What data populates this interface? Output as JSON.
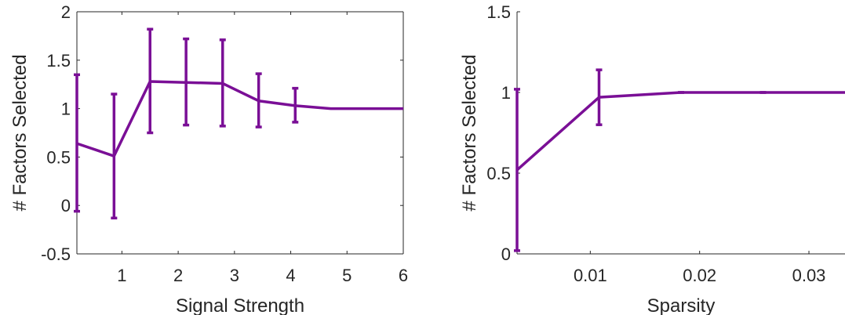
{
  "series_color": "#7a0f96",
  "axis_color": "#262626",
  "chart_data": [
    {
      "type": "line",
      "xlabel": "Signal Strength",
      "ylabel": "# Factors Selected",
      "xlim": [
        0.2,
        6
      ],
      "ylim": [
        -0.5,
        2
      ],
      "xticks": [
        1,
        2,
        3,
        4,
        5,
        6
      ],
      "xtick_labels": [
        "1",
        "2",
        "3",
        "4",
        "5",
        "6"
      ],
      "yticks": [
        -0.5,
        0,
        0.5,
        1,
        1.5,
        2
      ],
      "ytick_labels": [
        "-0.5",
        "0",
        "0.5",
        "1",
        "1.5",
        "2"
      ],
      "grid": false,
      "box": "full",
      "series": [
        {
          "x": [
            0.2,
            0.86,
            1.5,
            2.14,
            2.79,
            3.43,
            4.08,
            4.71,
            5.36,
            6.0
          ],
          "y": [
            0.64,
            0.51,
            1.28,
            1.27,
            1.26,
            1.08,
            1.03,
            1.0,
            1.0,
            1.0
          ],
          "err_low": [
            -0.06,
            -0.13,
            0.75,
            0.83,
            0.82,
            0.81,
            0.86,
            1.0,
            1.0,
            1.0
          ],
          "err_high": [
            1.35,
            1.15,
            1.82,
            1.72,
            1.71,
            1.36,
            1.21,
            1.0,
            1.0,
            1.0
          ],
          "errorbars": [
            true,
            true,
            true,
            true,
            true,
            true,
            true,
            false,
            false,
            false
          ]
        }
      ]
    },
    {
      "type": "line",
      "xlabel": "Sparsity",
      "ylabel": "# Factors Selected",
      "xlim": [
        0.0033,
        0.0333
      ],
      "ylim": [
        0,
        1.5
      ],
      "xticks": [
        0.01,
        0.02,
        0.03
      ],
      "xtick_labels": [
        "0.01",
        "0.02",
        "0.03"
      ],
      "yticks": [
        0,
        0.5,
        1,
        1.5
      ],
      "ytick_labels": [
        "0",
        "0.5",
        "1",
        "1.5"
      ],
      "grid": false,
      "box": "left-bottom",
      "series": [
        {
          "x": [
            0.0033,
            0.0108,
            0.0183,
            0.0258,
            0.0333
          ],
          "y": [
            0.52,
            0.97,
            1.0,
            1.0,
            1.0
          ],
          "err_low": [
            0.02,
            0.8,
            1.0,
            1.0,
            1.0
          ],
          "err_high": [
            1.02,
            1.14,
            1.0,
            1.0,
            1.0
          ],
          "errorbars": [
            true,
            true,
            true,
            true,
            false
          ]
        }
      ]
    }
  ]
}
